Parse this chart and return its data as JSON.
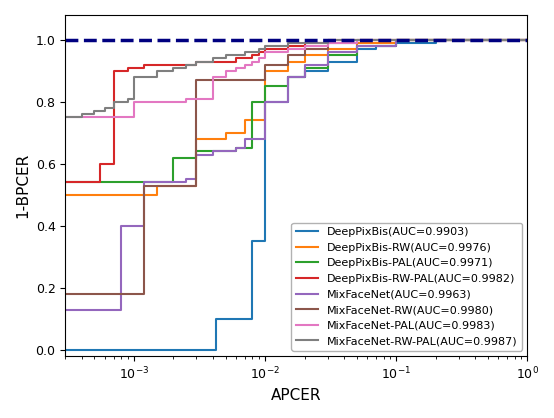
{
  "title": "",
  "xlabel": "APCER",
  "ylabel": "1-BPCER",
  "dashed_line_y": 1.0,
  "legend_entries": [
    "DeepPixBis(AUC=0.9903)",
    "DeepPixBis-RW(AUC=0.9976)",
    "DeepPixBis-PAL(AUC=0.9971)",
    "DeepPixBis-RW-PAL(AUC=0.9982)",
    "MixFaceNet(AUC=0.9963)",
    "MixFaceNet-RW(AUC=0.9980)",
    "MixFaceNet-PAL(AUC=0.9983)",
    "MixFaceNet-RW-PAL(AUC=0.9987)"
  ],
  "colors": [
    "#1f77b4",
    "#ff7f0e",
    "#2ca02c",
    "#d62728",
    "#9467bd",
    "#8c564b",
    "#e377c2",
    "#7f7f7f"
  ],
  "curves": {
    "DeepPixBis": {
      "x": [
        0.0003,
        0.0004,
        0.0005,
        0.0006,
        0.0007,
        0.0008,
        0.0009,
        0.001,
        0.0015,
        0.002,
        0.0025,
        0.003,
        0.0035,
        0.004,
        0.0042,
        0.0045,
        0.005,
        0.006,
        0.007,
        0.008,
        0.009,
        0.01,
        0.015,
        0.02,
        0.03,
        0.05,
        0.07,
        0.1,
        0.2,
        0.5,
        1.0
      ],
      "y": [
        0.0,
        0.0,
        0.0,
        0.0,
        0.0,
        0.0,
        0.0,
        0.0,
        0.0,
        0.0,
        0.0,
        0.0,
        0.0,
        0.0,
        0.1,
        0.1,
        0.1,
        0.1,
        0.1,
        0.35,
        0.35,
        0.8,
        0.88,
        0.9,
        0.93,
        0.97,
        0.98,
        0.99,
        1.0,
        1.0,
        1.0
      ]
    },
    "DeepPixBis-RW": {
      "x": [
        0.0003,
        0.0004,
        0.0005,
        0.0006,
        0.0007,
        0.0008,
        0.0009,
        0.001,
        0.0012,
        0.0015,
        0.002,
        0.0025,
        0.003,
        0.004,
        0.005,
        0.006,
        0.007,
        0.008,
        0.009,
        0.01,
        0.015,
        0.02,
        0.03,
        0.05,
        0.1,
        1.0
      ],
      "y": [
        0.5,
        0.5,
        0.5,
        0.5,
        0.5,
        0.5,
        0.5,
        0.5,
        0.5,
        0.53,
        0.53,
        0.53,
        0.68,
        0.68,
        0.7,
        0.7,
        0.74,
        0.74,
        0.74,
        0.9,
        0.93,
        0.95,
        0.97,
        0.99,
        1.0,
        1.0
      ]
    },
    "DeepPixBis-PAL": {
      "x": [
        0.0003,
        0.0004,
        0.0005,
        0.0006,
        0.0007,
        0.0008,
        0.0009,
        0.001,
        0.0012,
        0.0015,
        0.002,
        0.0025,
        0.003,
        0.004,
        0.005,
        0.006,
        0.007,
        0.008,
        0.009,
        0.01,
        0.015,
        0.02,
        0.03,
        0.05,
        0.1,
        1.0
      ],
      "y": [
        0.54,
        0.54,
        0.54,
        0.54,
        0.54,
        0.54,
        0.54,
        0.54,
        0.54,
        0.54,
        0.62,
        0.62,
        0.64,
        0.64,
        0.64,
        0.65,
        0.65,
        0.8,
        0.8,
        0.85,
        0.88,
        0.91,
        0.95,
        0.98,
        1.0,
        1.0
      ]
    },
    "DeepPixBis-RW-PAL": {
      "x": [
        0.0003,
        0.0004,
        0.0005,
        0.00055,
        0.0006,
        0.0007,
        0.0008,
        0.0009,
        0.001,
        0.0012,
        0.0015,
        0.002,
        0.0025,
        0.003,
        0.004,
        0.005,
        0.006,
        0.007,
        0.008,
        0.009,
        0.01,
        0.015,
        0.02,
        0.03,
        0.05,
        0.1,
        1.0
      ],
      "y": [
        0.54,
        0.54,
        0.54,
        0.6,
        0.6,
        0.9,
        0.9,
        0.91,
        0.91,
        0.92,
        0.92,
        0.92,
        0.92,
        0.93,
        0.93,
        0.93,
        0.94,
        0.94,
        0.95,
        0.96,
        0.97,
        0.98,
        0.99,
        1.0,
        1.0,
        1.0,
        1.0
      ]
    },
    "MixFaceNet": {
      "x": [
        0.0003,
        0.0004,
        0.0005,
        0.0006,
        0.0007,
        0.0008,
        0.0009,
        0.001,
        0.0012,
        0.0015,
        0.002,
        0.0025,
        0.003,
        0.004,
        0.005,
        0.006,
        0.007,
        0.008,
        0.01,
        0.015,
        0.02,
        0.03,
        0.05,
        0.1,
        1.0
      ],
      "y": [
        0.13,
        0.13,
        0.13,
        0.13,
        0.13,
        0.4,
        0.4,
        0.4,
        0.54,
        0.54,
        0.54,
        0.55,
        0.63,
        0.64,
        0.64,
        0.65,
        0.68,
        0.68,
        0.8,
        0.88,
        0.92,
        0.96,
        0.98,
        1.0,
        1.0
      ]
    },
    "MixFaceNet-RW": {
      "x": [
        0.0003,
        0.0004,
        0.0005,
        0.0006,
        0.0007,
        0.0008,
        0.0009,
        0.001,
        0.0012,
        0.0015,
        0.002,
        0.0025,
        0.003,
        0.004,
        0.005,
        0.006,
        0.007,
        0.008,
        0.009,
        0.01,
        0.015,
        0.02,
        0.03,
        0.05,
        0.1,
        1.0
      ],
      "y": [
        0.18,
        0.18,
        0.18,
        0.18,
        0.18,
        0.18,
        0.18,
        0.18,
        0.53,
        0.53,
        0.53,
        0.53,
        0.87,
        0.87,
        0.87,
        0.87,
        0.87,
        0.87,
        0.87,
        0.92,
        0.95,
        0.97,
        0.99,
        1.0,
        1.0,
        1.0
      ]
    },
    "MixFaceNet-PAL": {
      "x": [
        0.0003,
        0.0004,
        0.0005,
        0.0006,
        0.0007,
        0.0008,
        0.0009,
        0.001,
        0.0012,
        0.0015,
        0.002,
        0.0025,
        0.003,
        0.004,
        0.005,
        0.006,
        0.007,
        0.008,
        0.009,
        0.01,
        0.015,
        0.02,
        0.03,
        0.05,
        0.1,
        1.0
      ],
      "y": [
        0.75,
        0.75,
        0.75,
        0.75,
        0.75,
        0.75,
        0.75,
        0.8,
        0.8,
        0.8,
        0.8,
        0.81,
        0.81,
        0.88,
        0.9,
        0.91,
        0.92,
        0.93,
        0.94,
        0.96,
        0.97,
        0.98,
        0.99,
        1.0,
        1.0,
        1.0
      ]
    },
    "MixFaceNet-RW-PAL": {
      "x": [
        0.0003,
        0.0004,
        0.0005,
        0.0006,
        0.0007,
        0.0008,
        0.0009,
        0.001,
        0.0012,
        0.0015,
        0.002,
        0.0025,
        0.003,
        0.004,
        0.005,
        0.006,
        0.007,
        0.008,
        0.009,
        0.01,
        0.015,
        0.02,
        0.03,
        0.05,
        0.1,
        1.0
      ],
      "y": [
        0.75,
        0.76,
        0.77,
        0.78,
        0.8,
        0.8,
        0.81,
        0.88,
        0.88,
        0.9,
        0.91,
        0.92,
        0.93,
        0.94,
        0.95,
        0.95,
        0.96,
        0.96,
        0.97,
        0.98,
        0.99,
        0.99,
        1.0,
        1.0,
        1.0,
        1.0
      ]
    }
  },
  "legend_fontsize": 8,
  "axis_fontsize": 11,
  "tick_fontsize": 9
}
